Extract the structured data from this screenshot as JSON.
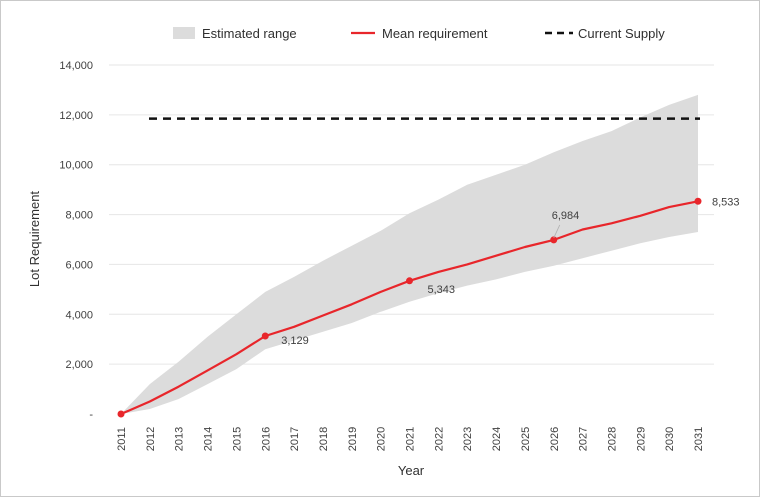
{
  "chart_data": {
    "type": "line",
    "title": "",
    "xlabel": "Year",
    "ylabel": "Lot Requirement",
    "categories": [
      "2011",
      "2012",
      "2013",
      "2014",
      "2015",
      "2016",
      "2017",
      "2018",
      "2019",
      "2020",
      "2021",
      "2022",
      "2023",
      "2024",
      "2025",
      "2026",
      "2027",
      "2028",
      "2029",
      "2030",
      "2031"
    ],
    "ylim": [
      0,
      14000
    ],
    "yticks": [
      {
        "value": 0,
        "label": "-"
      },
      {
        "value": 2000,
        "label": "2,000"
      },
      {
        "value": 4000,
        "label": "4,000"
      },
      {
        "value": 6000,
        "label": "6,000"
      },
      {
        "value": 8000,
        "label": "8,000"
      },
      {
        "value": 10000,
        "label": "10,000"
      },
      {
        "value": 12000,
        "label": "12,000"
      },
      {
        "value": 14000,
        "label": "14,000"
      }
    ],
    "grid": "horizontal",
    "legend_position": "top",
    "series": [
      {
        "name": "Estimated range",
        "kind": "band",
        "color": "#dcdcdc",
        "lower": [
          0,
          200,
          600,
          1200,
          1800,
          2600,
          2950,
          3300,
          3650,
          4100,
          4500,
          4850,
          5150,
          5400,
          5700,
          5950,
          6250,
          6550,
          6850,
          7100,
          7300
        ],
        "upper": [
          0,
          1200,
          2100,
          3100,
          4000,
          4900,
          5500,
          6150,
          6750,
          7350,
          8050,
          8600,
          9200,
          9600,
          10000,
          10500,
          10950,
          11350,
          11900,
          12400,
          12800
        ]
      },
      {
        "name": "Mean requirement",
        "kind": "line",
        "color": "#e8262b",
        "values": [
          0,
          500,
          1100,
          1750,
          2400,
          3129,
          3500,
          3950,
          4400,
          4900,
          5343,
          5700,
          6000,
          6350,
          6700,
          6984,
          7400,
          7650,
          7950,
          8300,
          8533
        ]
      },
      {
        "name": "Current Supply",
        "kind": "dashed",
        "color": "#111111",
        "value": 11850
      }
    ],
    "annotations": [
      {
        "category": "2016",
        "value": 3129,
        "label": "3,129"
      },
      {
        "category": "2021",
        "value": 5343,
        "label": "5,343"
      },
      {
        "category": "2026",
        "value": 6984,
        "label": "6,984"
      },
      {
        "category": "2031",
        "value": 8533,
        "label": "8,533"
      }
    ]
  }
}
